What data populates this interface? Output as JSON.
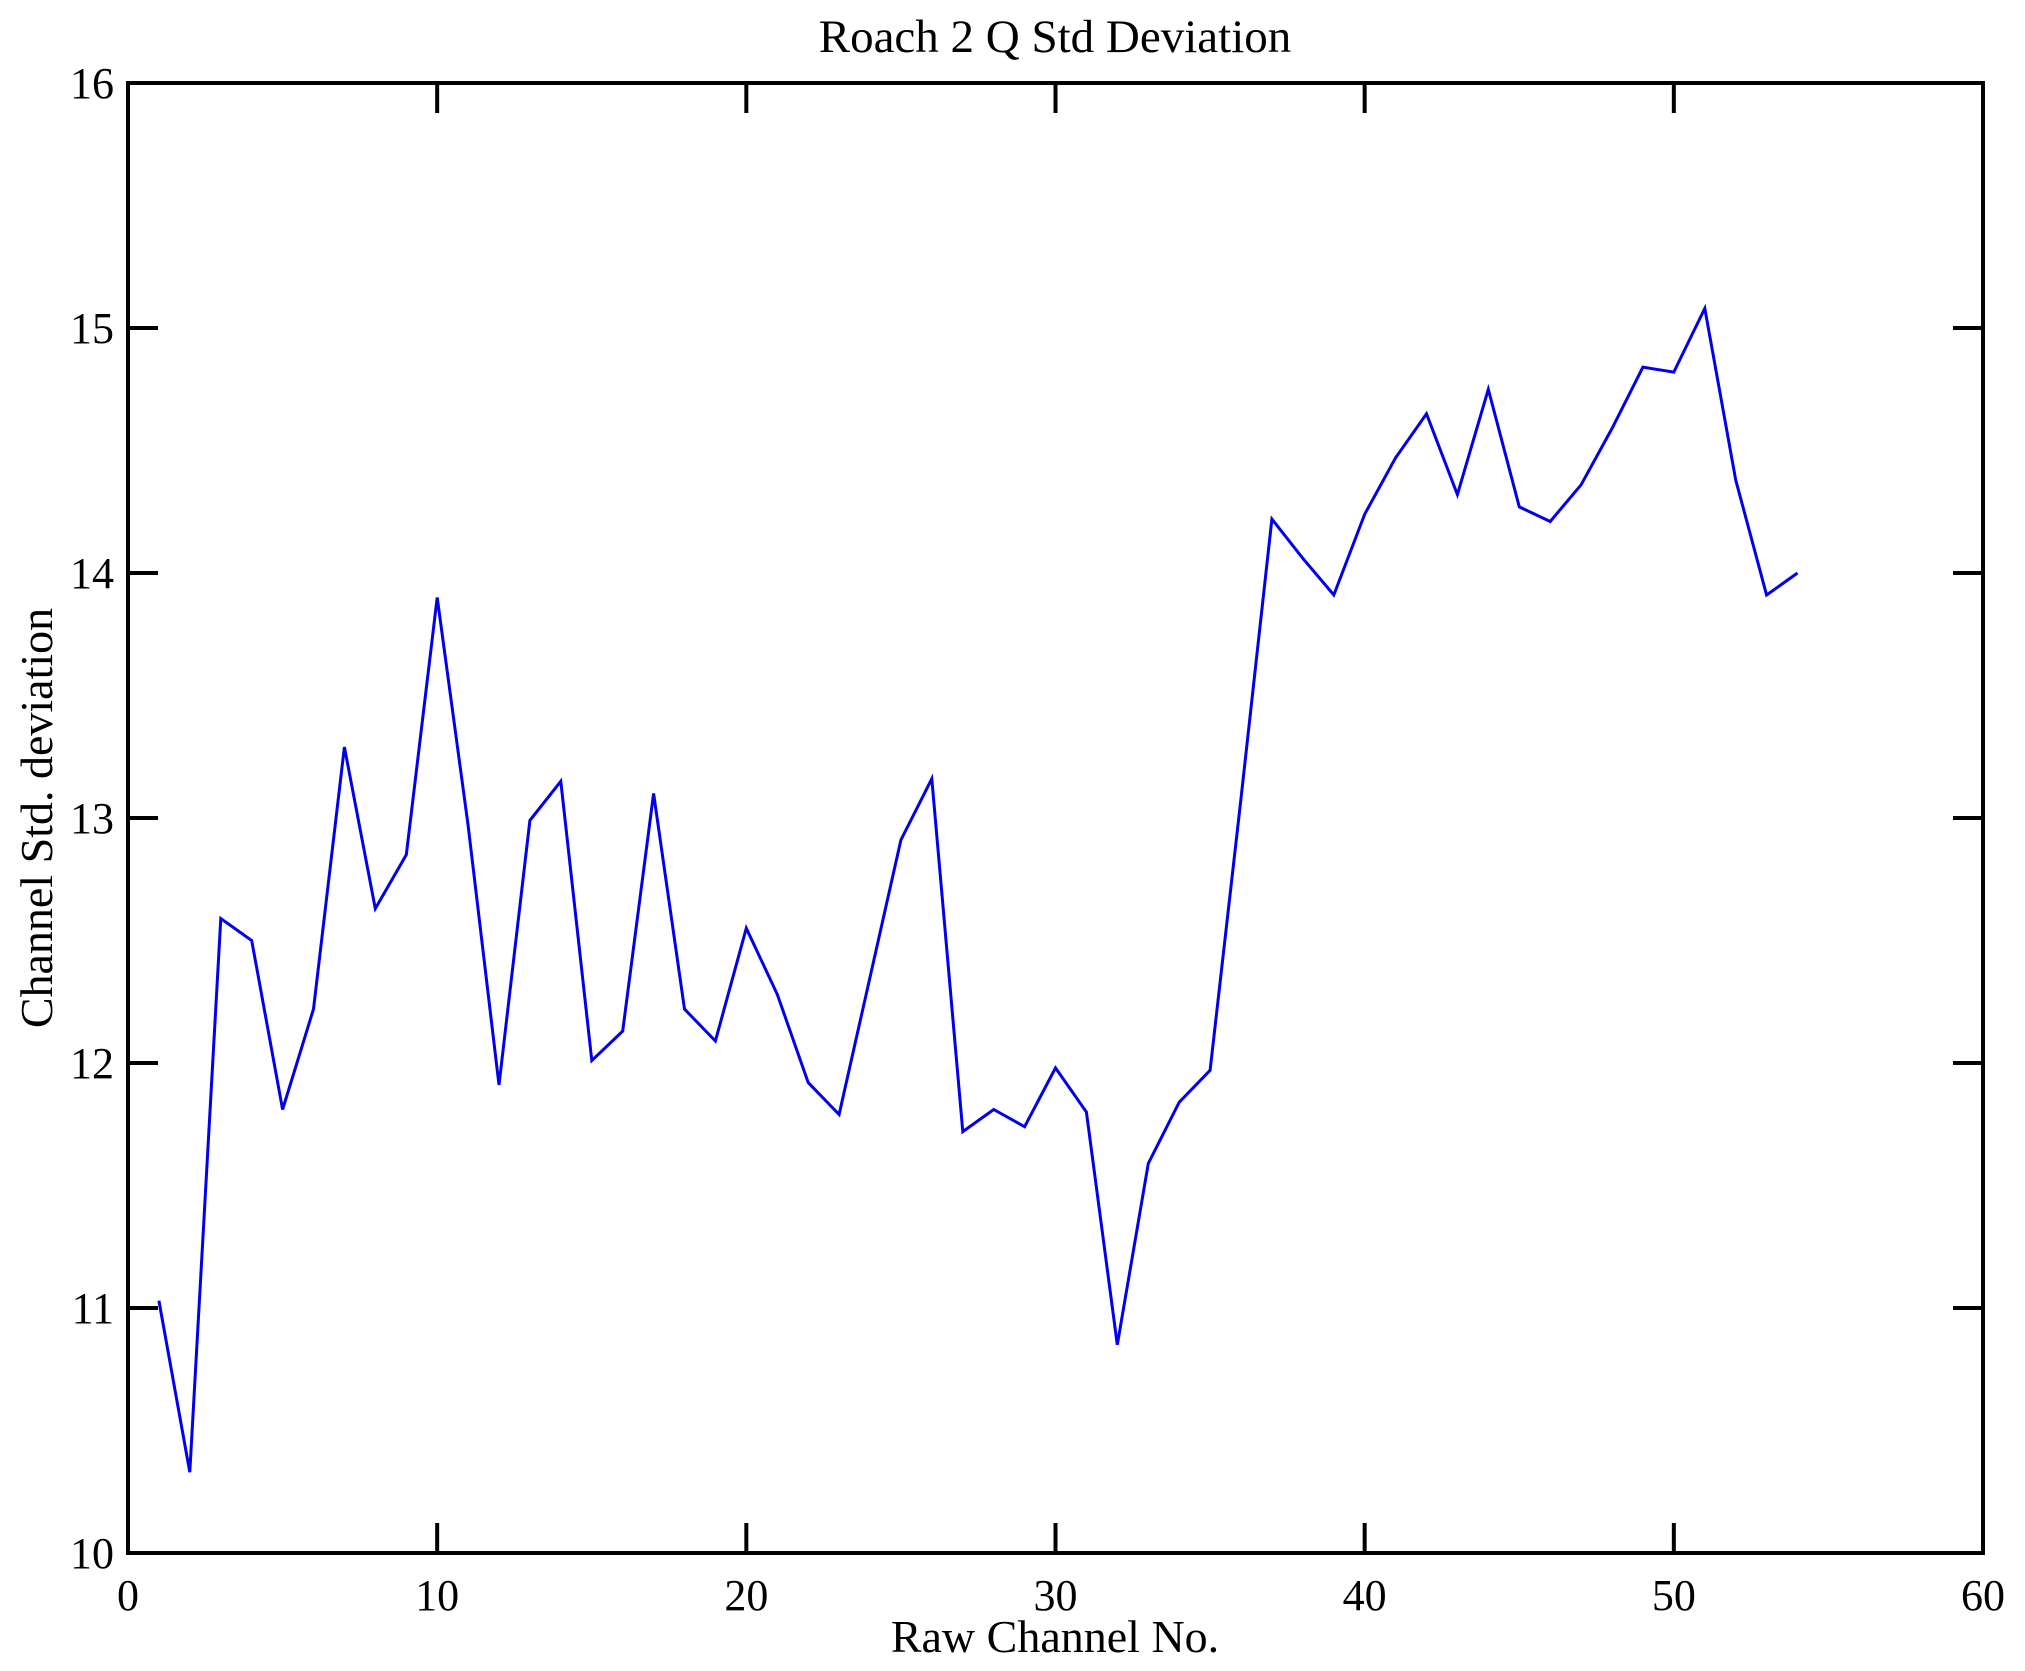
{
  "figure": {
    "title": "Roach 2 Q Std Deviation",
    "xlabel": "Raw Channel No.",
    "ylabel": "Channel Std. deviation"
  },
  "chart_data": {
    "type": "line",
    "title": "Roach 2 Q Std Deviation",
    "xlabel": "Raw Channel No.",
    "ylabel": "Channel Std. deviation",
    "xlim": [
      0,
      60
    ],
    "ylim": [
      10,
      16
    ],
    "x_ticks": [
      0,
      10,
      20,
      30,
      40,
      50,
      60
    ],
    "y_ticks": [
      10,
      11,
      12,
      13,
      14,
      15,
      16
    ],
    "grid": false,
    "legend": null,
    "box": true,
    "line_color": "#0000EE",
    "axis_color": "#000000",
    "background": "#FFFFFF",
    "series": [
      {
        "name": "Channel Std. deviation",
        "x": [
          1,
          2,
          3,
          4,
          5,
          6,
          7,
          8,
          9,
          10,
          11,
          12,
          13,
          14,
          15,
          16,
          17,
          18,
          19,
          20,
          21,
          22,
          23,
          24,
          25,
          26,
          27,
          28,
          29,
          30,
          31,
          32,
          33,
          34,
          35,
          36,
          37,
          38,
          39,
          40,
          41,
          42,
          43,
          44,
          45,
          46,
          47,
          48,
          49,
          50,
          51,
          52,
          53,
          54
        ],
        "y": [
          11.03,
          10.33,
          12.59,
          12.5,
          11.81,
          12.22,
          13.29,
          12.63,
          12.85,
          13.9,
          12.97,
          11.91,
          12.99,
          13.15,
          12.01,
          12.13,
          13.1,
          12.22,
          12.09,
          12.55,
          12.28,
          11.92,
          11.79,
          12.35,
          12.91,
          13.16,
          11.72,
          11.81,
          11.74,
          11.98,
          11.8,
          10.85,
          11.59,
          11.84,
          11.97,
          13.08,
          14.22,
          14.06,
          13.91,
          14.24,
          14.47,
          14.65,
          14.32,
          14.75,
          14.27,
          14.21,
          14.36,
          14.59,
          14.84,
          14.82,
          15.08,
          14.38,
          13.91,
          14.0
        ]
      }
    ]
  }
}
